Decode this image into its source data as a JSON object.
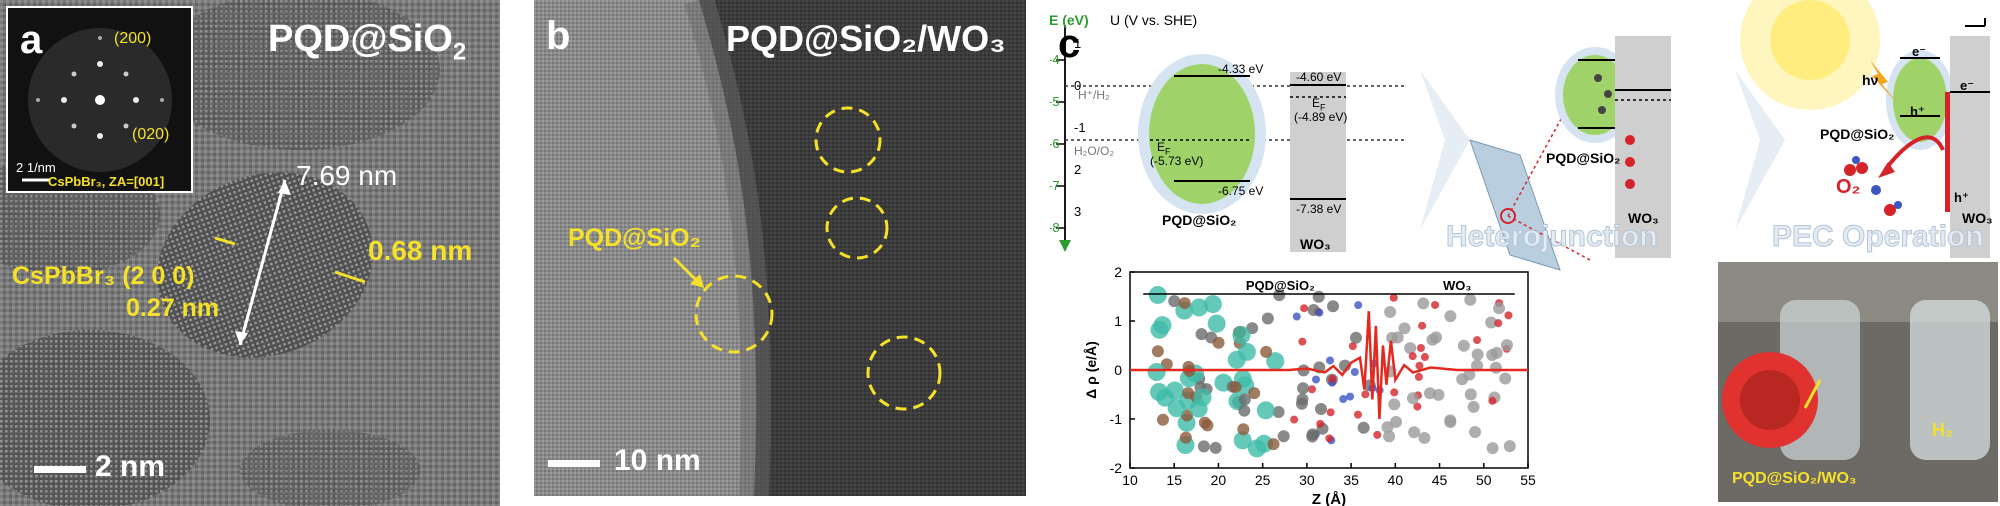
{
  "panel_a": {
    "letter": "a",
    "title_prefix": "PQD@SiO",
    "title_sub": "2",
    "fft_labels": [
      "(200)",
      "(020)"
    ],
    "fft_scale": "2 1/nm",
    "fft_caption": "CsPbBr₃, ZA=[001]",
    "size_label": "7.69 nm",
    "spacing_right": "0.68 nm",
    "plane_label": "CsPbBr₃ (2 0 0)",
    "plane_spacing": "0.27 nm",
    "scalebar": "2 nm"
  },
  "panel_b": {
    "letter": "b",
    "title": "PQD@SiO₂/WO₃",
    "qd_label": "PQD@SiO₂",
    "scalebar": "10 nm"
  },
  "panel_c": {
    "letter": "c",
    "axis_e": "E (eV)",
    "axis_u": "U (V vs. SHE)",
    "e_ticks": [
      "-4",
      "-5",
      "-6",
      "-7",
      "-8"
    ],
    "u_ticks": [
      "1",
      "0",
      "-1",
      "2",
      "3"
    ],
    "h_ref": "H⁺/H₂",
    "o_ref": "H₂O/O₂",
    "pqd_cb": "-4.33 eV",
    "pqd_vb": "-6.75 eV",
    "pqd_ef": "E",
    "pqd_ef_sub": "F",
    "pqd_ef_val": "(-5.73 eV)",
    "wo3_cb": "-4.60 eV",
    "wo3_ef": "E",
    "wo3_ef_sub": "F",
    "wo3_ef_val": "(-4.89 eV)",
    "wo3_vb": "-7.38 eV",
    "pqd_name": "PQD@SiO₂",
    "wo3_name": "WO₃",
    "hetero_pqd": "PQD@SiO₂",
    "hetero_wo3": "WO₃",
    "hetero_title": "Heterojunction",
    "pec_title": "PEC Operation",
    "pec_pqd": "PQD@SiO₂",
    "pec_hv": "hν",
    "pec_e1": "e⁻",
    "pec_e2": "e⁻",
    "pec_h1": "h⁺",
    "pec_h2": "h⁺",
    "pec_o2": "O₂",
    "pec_wo3": "WO₃",
    "photo_h2": "H₂",
    "photo_label": "PQD@SiO₂/WO₃",
    "colors": {
      "pqd_green": "#9fd36a",
      "wo3_gray": "#cfcfcf",
      "label_yellow": "#f5e12a",
      "charge_red": "#e22a20",
      "e_axis_green": "#2f9a2f"
    }
  },
  "chart_data": {
    "type": "line",
    "xlabel": "Z (Å)",
    "ylabel": "Δ ρ (e/Å)",
    "xlim": [
      10,
      55
    ],
    "ylim": [
      -2,
      2
    ],
    "xticks": [
      10,
      15,
      20,
      25,
      30,
      35,
      40,
      45,
      50,
      55
    ],
    "yticks": [
      -2,
      -1,
      0,
      1,
      2
    ],
    "region_labels": [
      "PQD@SiO₂",
      "WO₃"
    ],
    "region_split": 39.5,
    "series": [
      {
        "x": [
          10,
          28,
          30,
          32,
          33,
          34,
          35,
          36,
          36.5,
          37,
          37.4,
          37.8,
          38.2,
          38.6,
          39,
          39.5,
          40,
          41,
          42,
          44,
          47,
          50,
          55
        ],
        "y": [
          0,
          0,
          0.03,
          -0.05,
          0.08,
          -0.1,
          0.15,
          0.25,
          -0.4,
          1.2,
          -0.6,
          0.9,
          -1.0,
          0.5,
          -0.3,
          0.6,
          -0.2,
          0.1,
          -0.05,
          0.05,
          0,
          0,
          0
        ]
      }
    ]
  }
}
